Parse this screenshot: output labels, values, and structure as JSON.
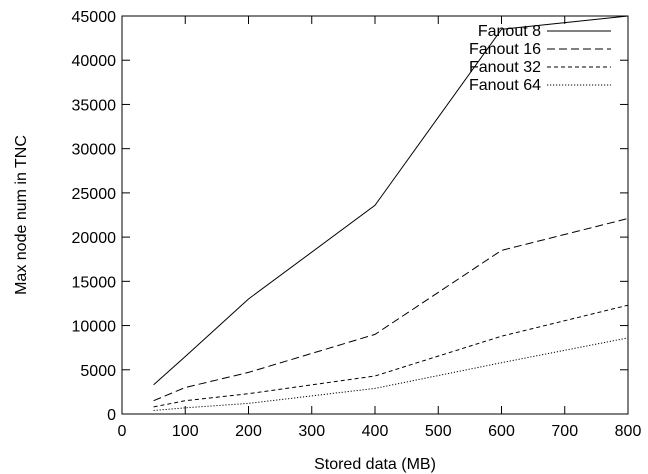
{
  "chart_data": {
    "type": "line",
    "title": "",
    "xlabel": "Stored data (MB)",
    "ylabel": "Max node num in TNC",
    "xlim": [
      0,
      800
    ],
    "ylim": [
      0,
      45000
    ],
    "xticks": [
      0,
      100,
      200,
      300,
      400,
      500,
      600,
      700,
      800
    ],
    "yticks": [
      0,
      5000,
      10000,
      15000,
      20000,
      25000,
      30000,
      35000,
      40000,
      45000
    ],
    "grid": false,
    "legend_position": "top-right",
    "series": [
      {
        "name": "Fanout 8",
        "dash": "solid",
        "x": [
          50,
          100,
          200,
          400,
          600,
          800
        ],
        "y": [
          3300,
          6500,
          13000,
          23600,
          43500,
          45000
        ]
      },
      {
        "name": "Fanout 16",
        "dash": "dashed",
        "x": [
          50,
          100,
          200,
          400,
          600,
          800
        ],
        "y": [
          1500,
          3000,
          4700,
          9000,
          18500,
          22100
        ]
      },
      {
        "name": "Fanout 32",
        "dash": "shortdash",
        "x": [
          50,
          100,
          200,
          400,
          600,
          800
        ],
        "y": [
          800,
          1500,
          2300,
          4300,
          8800,
          12300
        ]
      },
      {
        "name": "Fanout 64",
        "dash": "dotted",
        "x": [
          50,
          100,
          200,
          400,
          600,
          800
        ],
        "y": [
          400,
          700,
          1200,
          2900,
          5800,
          8600
        ]
      }
    ]
  }
}
